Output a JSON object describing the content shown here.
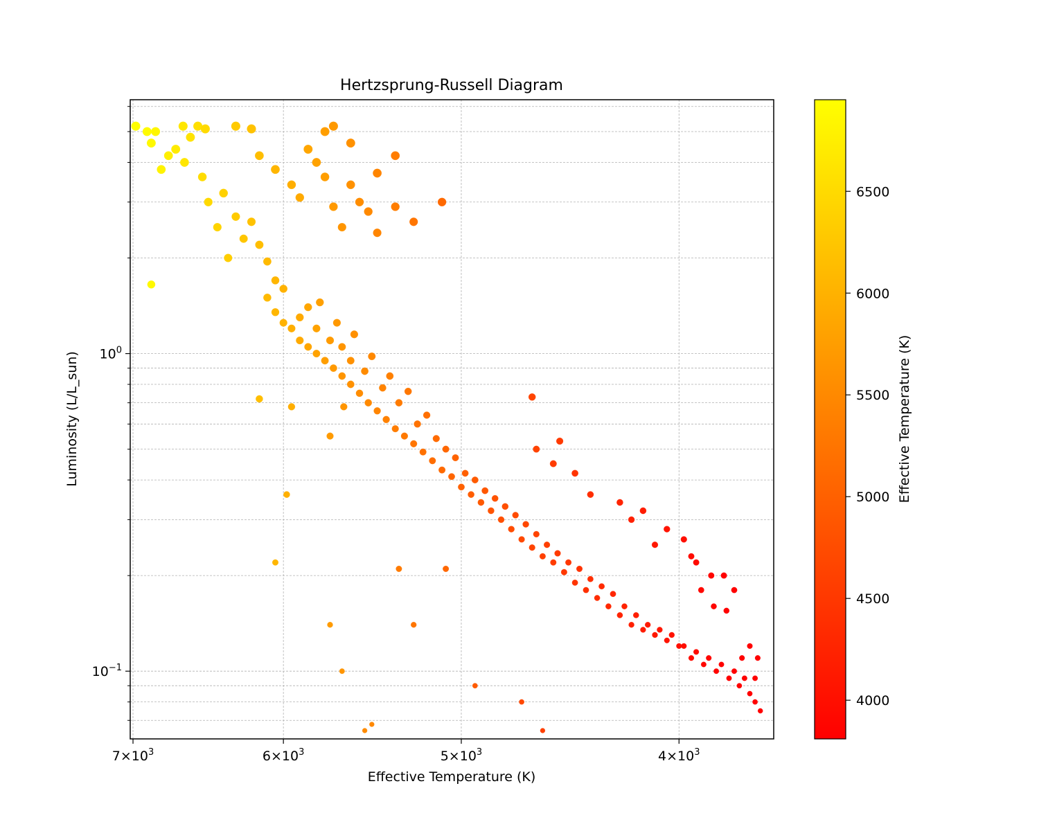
{
  "chart_data": {
    "type": "scatter",
    "title": "Hertzsprung-Russell Diagram",
    "xlabel": "Effective Temperature (K)",
    "ylabel": "Luminosity (L/L_sun)",
    "x_scale": "log",
    "y_scale": "log",
    "x_inverted": true,
    "xlim": [
      7020,
      3630
    ],
    "ylim": [
      0.0612,
      6.3
    ],
    "grid": true,
    "colormap": "autumn",
    "colorbar": {
      "label": "Effective Temperature (K)",
      "range": [
        3810,
        6950
      ],
      "ticks": [
        4000,
        4500,
        5000,
        5500,
        6000,
        6500
      ],
      "colors": [
        "#ff0000",
        "#ffff00"
      ]
    },
    "x_ticks": [
      {
        "value": 7000,
        "mantissa": "7",
        "exponent": "3"
      },
      {
        "value": 6000,
        "mantissa": "6",
        "exponent": "3"
      },
      {
        "value": 5000,
        "mantissa": "5",
        "exponent": "3"
      },
      {
        "value": 4000,
        "mantissa": "4",
        "exponent": "3"
      }
    ],
    "y_ticks": [
      {
        "value": 1.0,
        "base": "10",
        "exponent": "0"
      },
      {
        "value": 0.1,
        "base": "10",
        "exponent": "−1"
      }
    ],
    "points": [
      [
        6980,
        5.2
      ],
      [
        6900,
        5.0
      ],
      [
        6840,
        5.0
      ],
      [
        6870,
        4.6
      ],
      [
        6800,
        3.8
      ],
      [
        6870,
        1.65
      ],
      [
        6750,
        4.2
      ],
      [
        6700,
        4.4
      ],
      [
        6650,
        5.2
      ],
      [
        6600,
        4.8
      ],
      [
        6550,
        5.2
      ],
      [
        6500,
        5.1
      ],
      [
        6640,
        4.0
      ],
      [
        6520,
        3.6
      ],
      [
        6480,
        3.0
      ],
      [
        6420,
        2.5
      ],
      [
        6380,
        3.2
      ],
      [
        6300,
        2.7
      ],
      [
        6250,
        2.3
      ],
      [
        6350,
        2.0
      ],
      [
        6200,
        2.6
      ],
      [
        6150,
        2.2
      ],
      [
        6100,
        1.95
      ],
      [
        6050,
        1.7
      ],
      [
        6000,
        1.6
      ],
      [
        6150,
        4.2
      ],
      [
        6050,
        3.8
      ],
      [
        5950,
        3.4
      ],
      [
        5900,
        3.1
      ],
      [
        5850,
        4.4
      ],
      [
        5800,
        4.0
      ],
      [
        5750,
        3.6
      ],
      [
        5700,
        2.9
      ],
      [
        5650,
        2.5
      ],
      [
        5600,
        3.4
      ],
      [
        5550,
        3.0
      ],
      [
        5500,
        2.8
      ],
      [
        5450,
        2.4
      ],
      [
        5350,
        2.9
      ],
      [
        5250,
        2.6
      ],
      [
        5100,
        3.0
      ],
      [
        5350,
        4.2
      ],
      [
        5450,
        3.7
      ],
      [
        5700,
        5.2
      ],
      [
        5750,
        5.0
      ],
      [
        5600,
        4.6
      ],
      [
        6200,
        5.1
      ],
      [
        6300,
        5.2
      ],
      [
        6100,
        1.5
      ],
      [
        6050,
        1.35
      ],
      [
        6000,
        1.25
      ],
      [
        5950,
        1.2
      ],
      [
        5900,
        1.1
      ],
      [
        5850,
        1.05
      ],
      [
        5800,
        1.0
      ],
      [
        5750,
        0.95
      ],
      [
        5700,
        0.9
      ],
      [
        5650,
        0.85
      ],
      [
        5600,
        0.8
      ],
      [
        5550,
        0.75
      ],
      [
        5500,
        0.7
      ],
      [
        5450,
        0.66
      ],
      [
        5400,
        0.62
      ],
      [
        5350,
        0.58
      ],
      [
        5300,
        0.55
      ],
      [
        5250,
        0.52
      ],
      [
        5200,
        0.49
      ],
      [
        5150,
        0.46
      ],
      [
        5100,
        0.43
      ],
      [
        5050,
        0.41
      ],
      [
        5000,
        0.38
      ],
      [
        4950,
        0.36
      ],
      [
        4900,
        0.34
      ],
      [
        4850,
        0.32
      ],
      [
        4800,
        0.3
      ],
      [
        4750,
        0.28
      ],
      [
        4700,
        0.26
      ],
      [
        4650,
        0.245
      ],
      [
        4600,
        0.23
      ],
      [
        4550,
        0.22
      ],
      [
        4500,
        0.205
      ],
      [
        4450,
        0.19
      ],
      [
        4400,
        0.18
      ],
      [
        4350,
        0.17
      ],
      [
        4300,
        0.16
      ],
      [
        4250,
        0.15
      ],
      [
        4200,
        0.14
      ],
      [
        4150,
        0.135
      ],
      [
        4100,
        0.13
      ],
      [
        4050,
        0.125
      ],
      [
        4000,
        0.12
      ],
      [
        3950,
        0.11
      ],
      [
        3900,
        0.105
      ],
      [
        3850,
        0.1
      ],
      [
        3800,
        0.095
      ],
      [
        3760,
        0.09
      ],
      [
        3720,
        0.085
      ],
      [
        3700,
        0.08
      ],
      [
        5900,
        1.3
      ],
      [
        5850,
        1.4
      ],
      [
        5800,
        1.2
      ],
      [
        5780,
        1.45
      ],
      [
        5720,
        1.1
      ],
      [
        5680,
        1.25
      ],
      [
        5650,
        1.05
      ],
      [
        5600,
        0.95
      ],
      [
        5580,
        1.15
      ],
      [
        5520,
        0.88
      ],
      [
        5480,
        0.98
      ],
      [
        5420,
        0.78
      ],
      [
        5380,
        0.85
      ],
      [
        5330,
        0.7
      ],
      [
        5280,
        0.76
      ],
      [
        5230,
        0.6
      ],
      [
        5180,
        0.64
      ],
      [
        5130,
        0.54
      ],
      [
        5080,
        0.5
      ],
      [
        5030,
        0.47
      ],
      [
        4980,
        0.42
      ],
      [
        4930,
        0.4
      ],
      [
        4880,
        0.37
      ],
      [
        4830,
        0.35
      ],
      [
        4780,
        0.33
      ],
      [
        4730,
        0.31
      ],
      [
        4680,
        0.29
      ],
      [
        4630,
        0.27
      ],
      [
        4580,
        0.25
      ],
      [
        4530,
        0.235
      ],
      [
        4480,
        0.22
      ],
      [
        4430,
        0.21
      ],
      [
        4380,
        0.195
      ],
      [
        4330,
        0.185
      ],
      [
        4280,
        0.175
      ],
      [
        4230,
        0.16
      ],
      [
        4180,
        0.15
      ],
      [
        4130,
        0.14
      ],
      [
        4080,
        0.135
      ],
      [
        4030,
        0.13
      ],
      [
        3980,
        0.12
      ],
      [
        3930,
        0.115
      ],
      [
        3880,
        0.11
      ],
      [
        3830,
        0.105
      ],
      [
        3780,
        0.1
      ],
      [
        3740,
        0.095
      ],
      [
        6150,
        0.72
      ],
      [
        5950,
        0.68
      ],
      [
        5980,
        0.36
      ],
      [
        5720,
        0.55
      ],
      [
        5640,
        0.68
      ],
      [
        6050,
        0.22
      ],
      [
        5720,
        0.14
      ],
      [
        5650,
        0.1
      ],
      [
        5520,
        0.065
      ],
      [
        5480,
        0.068
      ],
      [
        5330,
        0.21
      ],
      [
        5250,
        0.14
      ],
      [
        5080,
        0.21
      ],
      [
        4930,
        0.09
      ],
      [
        4700,
        0.08
      ],
      [
        4600,
        0.065
      ],
      [
        4200,
        0.3
      ],
      [
        4100,
        0.25
      ],
      [
        3950,
        0.23
      ],
      [
        3910,
        0.18
      ],
      [
        3860,
        0.16
      ],
      [
        3810,
        0.155
      ],
      [
        3750,
        0.11
      ],
      [
        3700,
        0.095
      ],
      [
        3680,
        0.075
      ],
      [
        4650,
        0.73
      ],
      [
        4630,
        0.5
      ],
      [
        4550,
        0.45
      ],
      [
        4520,
        0.53
      ],
      [
        4450,
        0.42
      ],
      [
        4380,
        0.36
      ],
      [
        4250,
        0.34
      ],
      [
        4150,
        0.32
      ],
      [
        4050,
        0.28
      ],
      [
        3980,
        0.26
      ],
      [
        3930,
        0.22
      ],
      [
        3870,
        0.2
      ],
      [
        3820,
        0.2
      ],
      [
        3780,
        0.18
      ],
      [
        3720,
        0.12
      ],
      [
        3690,
        0.11
      ]
    ]
  }
}
